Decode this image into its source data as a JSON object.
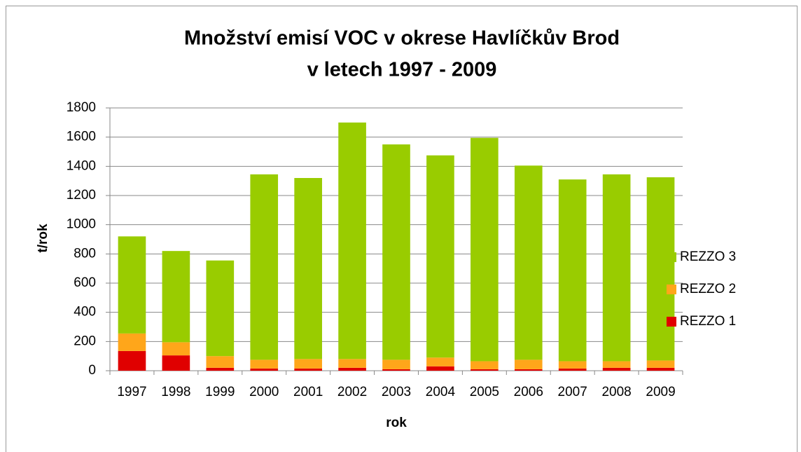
{
  "chart_data": {
    "type": "stacked_bar",
    "title": "Množství emisí VOC v okrese Havlíčkův Brod",
    "subtitle": "v letech 1997 - 2009",
    "x_label": "rok",
    "y_label": "t/rok",
    "categories": [
      "1997",
      "1998",
      "1999",
      "2000",
      "2001",
      "2002",
      "2003",
      "2004",
      "2005",
      "2006",
      "2007",
      "2008",
      "2009"
    ],
    "series": [
      {
        "name": "REZZO 1",
        "color": "#e00000",
        "values": [
          135,
          105,
          20,
          15,
          15,
          20,
          10,
          30,
          10,
          10,
          15,
          20,
          20
        ]
      },
      {
        "name": "REZZO 2",
        "color": "#ffa61a",
        "values": [
          120,
          90,
          80,
          60,
          65,
          60,
          65,
          60,
          55,
          65,
          50,
          45,
          50
        ]
      },
      {
        "name": "REZZO 3",
        "color": "#99cc00",
        "values": [
          665,
          625,
          655,
          1270,
          1240,
          1620,
          1475,
          1385,
          1530,
          1330,
          1245,
          1280,
          1255
        ]
      }
    ],
    "ylim": [
      0,
      1800
    ],
    "yticks": [
      0,
      200,
      400,
      600,
      800,
      1000,
      1200,
      1400,
      1600,
      1800
    ],
    "grid": true,
    "legend": "right"
  }
}
